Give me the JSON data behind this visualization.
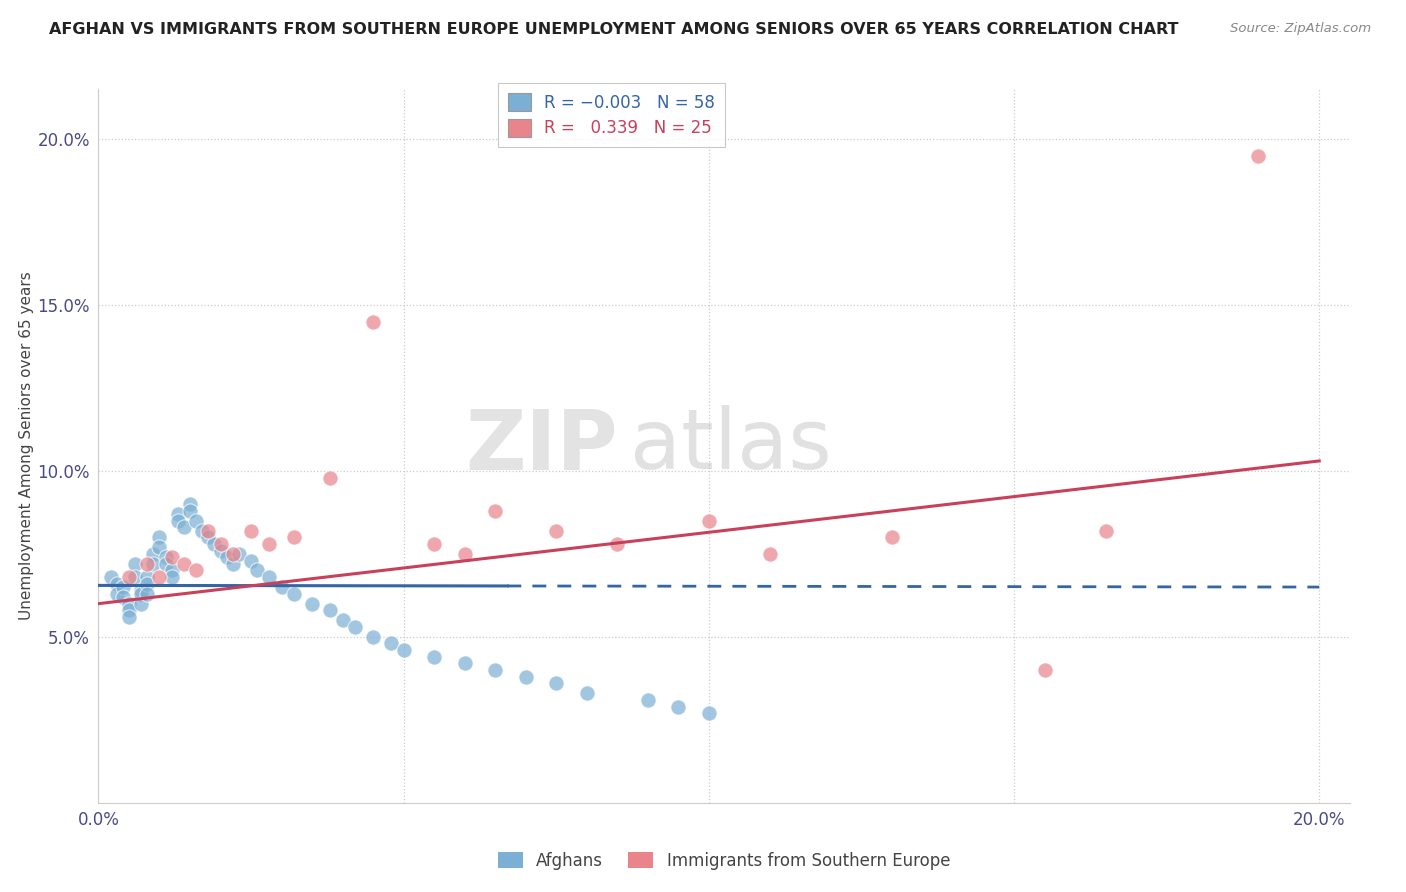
{
  "title": "AFGHAN VS IMMIGRANTS FROM SOUTHERN EUROPE UNEMPLOYMENT AMONG SENIORS OVER 65 YEARS CORRELATION CHART",
  "source": "Source: ZipAtlas.com",
  "ylabel": "Unemployment Among Seniors over 65 years",
  "xlim": [
    0.0,
    0.205
  ],
  "ylim": [
    0.0,
    0.215
  ],
  "afghan_color": "#7bafd4",
  "southern_europe_color": "#e8848a",
  "afghan_line_color": "#3465a4",
  "southern_line_color": "#c9405a",
  "afghan_R": -0.003,
  "afghan_N": 58,
  "southern_europe_R": 0.339,
  "southern_europe_N": 25,
  "watermark_zip": "ZIP",
  "watermark_atlas": "atlas",
  "afghans_x": [
    0.002,
    0.003,
    0.003,
    0.004,
    0.004,
    0.005,
    0.005,
    0.005,
    0.006,
    0.006,
    0.007,
    0.007,
    0.007,
    0.008,
    0.008,
    0.008,
    0.009,
    0.009,
    0.01,
    0.01,
    0.011,
    0.011,
    0.012,
    0.012,
    0.013,
    0.013,
    0.014,
    0.015,
    0.015,
    0.016,
    0.017,
    0.018,
    0.019,
    0.02,
    0.021,
    0.022,
    0.023,
    0.025,
    0.026,
    0.028,
    0.03,
    0.032,
    0.035,
    0.038,
    0.04,
    0.042,
    0.045,
    0.048,
    0.05,
    0.055,
    0.06,
    0.065,
    0.07,
    0.075,
    0.08,
    0.09,
    0.095,
    0.1
  ],
  "afghans_y": [
    0.068,
    0.066,
    0.063,
    0.065,
    0.062,
    0.06,
    0.058,
    0.056,
    0.072,
    0.068,
    0.064,
    0.063,
    0.06,
    0.068,
    0.066,
    0.063,
    0.075,
    0.072,
    0.08,
    0.077,
    0.074,
    0.072,
    0.07,
    0.068,
    0.087,
    0.085,
    0.083,
    0.09,
    0.088,
    0.085,
    0.082,
    0.08,
    0.078,
    0.076,
    0.074,
    0.072,
    0.075,
    0.073,
    0.07,
    0.068,
    0.065,
    0.063,
    0.06,
    0.058,
    0.055,
    0.053,
    0.05,
    0.048,
    0.046,
    0.044,
    0.042,
    0.04,
    0.038,
    0.036,
    0.033,
    0.031,
    0.029,
    0.027
  ],
  "southern_x": [
    0.005,
    0.008,
    0.01,
    0.012,
    0.014,
    0.016,
    0.018,
    0.02,
    0.022,
    0.025,
    0.028,
    0.032,
    0.038,
    0.045,
    0.055,
    0.06,
    0.065,
    0.075,
    0.085,
    0.1,
    0.11,
    0.13,
    0.155,
    0.165,
    0.19
  ],
  "southern_y": [
    0.068,
    0.072,
    0.068,
    0.074,
    0.072,
    0.07,
    0.082,
    0.078,
    0.075,
    0.082,
    0.078,
    0.08,
    0.098,
    0.145,
    0.078,
    0.075,
    0.088,
    0.082,
    0.078,
    0.085,
    0.075,
    0.08,
    0.04,
    0.082,
    0.195
  ],
  "afghan_line_y_start": 0.0655,
  "afghan_line_y_end": 0.065,
  "southern_line_y_start": 0.06,
  "southern_line_y_end": 0.103
}
